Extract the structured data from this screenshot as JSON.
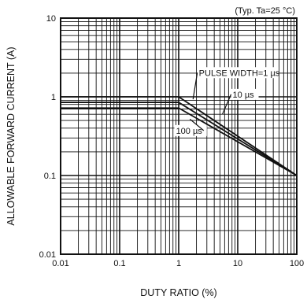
{
  "chart_data": {
    "type": "line",
    "title": "",
    "condition": "(Typ. Ta=25 °C)",
    "xlabel": "DUTY RATIO (%)",
    "ylabel": "ALLOWABLE FORWARD CURRENT (A)",
    "xscale": "log",
    "yscale": "log",
    "xlim": [
      0.01,
      100
    ],
    "ylim": [
      0.01,
      10
    ],
    "x_ticks": [
      "0.01",
      "0.1",
      "1",
      "10",
      "100"
    ],
    "y_ticks": [
      "0.01",
      "0.1",
      "1",
      "10"
    ],
    "grid": true,
    "series": [
      {
        "name": "PULSE WIDTH=1 µs",
        "x": [
          0.01,
          1.0,
          100
        ],
        "y": [
          1.0,
          1.0,
          0.1
        ]
      },
      {
        "name": "10 µs",
        "x": [
          0.01,
          1.0,
          100
        ],
        "y": [
          0.85,
          0.85,
          0.1
        ]
      },
      {
        "name": "100 µs",
        "x": [
          0.01,
          1.0,
          100
        ],
        "y": [
          0.72,
          0.72,
          0.1
        ]
      }
    ]
  }
}
